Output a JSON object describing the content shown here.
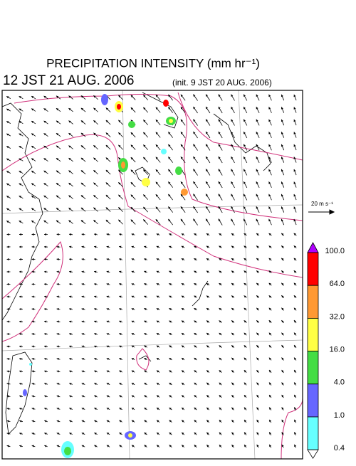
{
  "header": {
    "title": "PRECIPITATION INTENSITY (mm hr⁻¹)",
    "valid_time": "12 JST 21 AUG. 2006",
    "init_time": "(init. 9 JST 20 AUG. 2006)"
  },
  "vector_scale": {
    "label": "20 m s⁻¹"
  },
  "colorbar": {
    "labels": [
      "100.0",
      "64.0",
      "32.0",
      "16.0",
      "4.0",
      "1.0",
      "0.4"
    ],
    "colors": [
      "#ff0000",
      "#ff9933",
      "#ffff44",
      "#44dd44",
      "#6666ff",
      "#66ffff"
    ],
    "over_color": "#b000ff",
    "under_color": "#ffffff"
  }
}
